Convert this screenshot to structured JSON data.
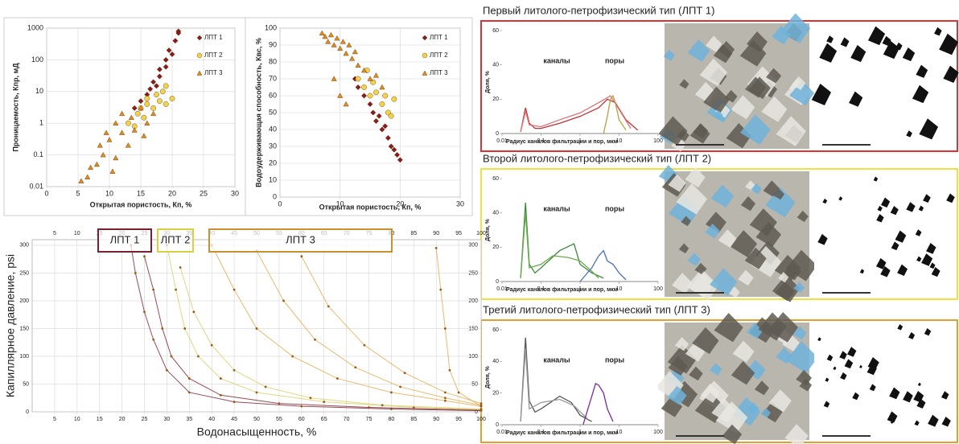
{
  "chart_data": [
    {
      "type": "scatter",
      "x_label": "Открытая пористость, Кп, %",
      "y_label": "Проницаемость, Кпр, мД",
      "xlim": [
        0,
        30
      ],
      "xticks": [
        0,
        5,
        10,
        15,
        20,
        25,
        30
      ],
      "ylim": [
        0.01,
        1000
      ],
      "yticks": [
        0.01,
        0.1,
        1,
        10,
        100,
        1000
      ],
      "log_y": true,
      "grid": true,
      "legend": "right",
      "series": [
        {
          "name": "ЛПТ 1",
          "color": "#8b1a1a",
          "marker": "diamond",
          "x": [
            14,
            15,
            16,
            16.5,
            17,
            17.5,
            18,
            18,
            19,
            19,
            19.5,
            20,
            20.5,
            21,
            21
          ],
          "values": [
            3,
            5,
            8,
            12,
            20,
            15,
            30,
            50,
            60,
            100,
            200,
            150,
            400,
            700,
            800
          ]
        },
        {
          "name": "ЛПТ 2",
          "color": "#f2d24a",
          "marker": "circle",
          "x": [
            13,
            14,
            14.5,
            15,
            15.5,
            16,
            16,
            17,
            17.5,
            18,
            18.5,
            19,
            19,
            20
          ],
          "values": [
            1,
            0.8,
            2,
            3,
            1.5,
            4,
            6,
            3,
            8,
            5,
            10,
            4,
            15,
            6
          ]
        },
        {
          "name": "ЛПТ 3",
          "color": "#e08a1e",
          "marker": "triangle",
          "x": [
            7,
            8,
            8.5,
            9,
            9.5,
            10,
            10.5,
            11,
            11,
            12,
            12,
            13,
            13.5,
            14,
            15,
            15.5,
            16,
            17,
            5.5,
            6.5
          ],
          "values": [
            0.04,
            0.05,
            0.2,
            0.1,
            0.5,
            0.3,
            0.03,
            1,
            0.08,
            0.5,
            2,
            0.2,
            1.5,
            0.6,
            3,
            0.4,
            1,
            2,
            0.015,
            0.02
          ]
        }
      ]
    },
    {
      "type": "scatter",
      "x_label": "Открытая пористость, Кп, %",
      "y_label": "Водоудерживающая способность, Квс, %",
      "xlim": [
        0,
        30
      ],
      "xticks": [
        0,
        10,
        20,
        30
      ],
      "ylim": [
        0,
        100
      ],
      "yticks": [
        0,
        10,
        20,
        30,
        40,
        50,
        60,
        70,
        80,
        90,
        100
      ],
      "grid": true,
      "legend": "right",
      "series": [
        {
          "name": "ЛПТ 1",
          "color": "#8b1a1a",
          "marker": "diamond",
          "x": [
            14,
            15,
            15.5,
            16,
            16.5,
            17,
            17.5,
            18,
            18.5,
            19,
            19.5,
            20,
            13,
            12.5
          ],
          "values": [
            60,
            55,
            50,
            45,
            48,
            40,
            42,
            35,
            30,
            28,
            25,
            22,
            65,
            70
          ]
        },
        {
          "name": "ЛПТ 2",
          "color": "#f2d24a",
          "marker": "circle",
          "x": [
            13,
            14,
            14.5,
            15,
            15.5,
            16,
            17,
            17.5,
            18,
            18.5,
            19
          ],
          "values": [
            70,
            65,
            75,
            60,
            68,
            62,
            55,
            60,
            50,
            48,
            58
          ]
        },
        {
          "name": "ЛПТ 3",
          "color": "#e08a1e",
          "marker": "triangle",
          "x": [
            7,
            7.5,
            8,
            8.5,
            9,
            9.5,
            10,
            10.5,
            11,
            11.5,
            12,
            12.5,
            13,
            14,
            15,
            16,
            17,
            9,
            10,
            11
          ],
          "values": [
            97,
            95,
            92,
            96,
            90,
            94,
            88,
            92,
            85,
            90,
            82,
            86,
            78,
            75,
            70,
            72,
            65,
            70,
            60,
            55
          ]
        }
      ]
    },
    {
      "type": "line",
      "x_label": "Водонасыщенность, %",
      "y_label": "Капиллярное давление, psi",
      "xlim": [
        0,
        100
      ],
      "xticks": [
        5,
        10,
        15,
        20,
        25,
        30,
        35,
        40,
        45,
        50,
        55,
        60,
        65,
        70,
        75,
        80,
        85,
        90,
        95,
        100
      ],
      "ylim": [
        0,
        310
      ],
      "yticks": [
        0,
        50,
        100,
        150,
        200,
        250,
        300
      ],
      "grid": true,
      "annotations": [
        {
          "text": "ЛПТ 1",
          "color": "#7a2030"
        },
        {
          "text": "ЛПТ 2",
          "color": "#d8d040"
        },
        {
          "text": "ЛПТ 3",
          "color": "#c89030"
        }
      ],
      "series": [
        {
          "color": "#7a2030",
          "x": [
            22,
            23,
            25,
            27,
            30,
            35,
            45,
            60,
            80,
            100
          ],
          "values": [
            300,
            250,
            180,
            130,
            75,
            35,
            18,
            10,
            5,
            2
          ]
        },
        {
          "color": "#7a2030",
          "x": [
            25,
            27,
            29,
            31,
            35,
            42,
            55,
            75,
            100
          ],
          "values": [
            280,
            220,
            150,
            100,
            60,
            30,
            15,
            8,
            3
          ]
        },
        {
          "color": "#d6d060",
          "x": [
            30,
            32,
            34,
            37,
            42,
            50,
            65,
            85,
            100
          ],
          "values": [
            300,
            220,
            150,
            100,
            60,
            35,
            18,
            8,
            4
          ]
        },
        {
          "color": "#d6d060",
          "x": [
            33,
            36,
            40,
            45,
            52,
            62,
            78,
            100
          ],
          "values": [
            260,
            180,
            120,
            75,
            45,
            25,
            12,
            5
          ]
        },
        {
          "color": "#e3a94a",
          "x": [
            40,
            45,
            50,
            58,
            68,
            80,
            92,
            100
          ],
          "values": [
            300,
            220,
            150,
            100,
            60,
            35,
            20,
            10
          ]
        },
        {
          "color": "#e3a94a",
          "x": [
            50,
            56,
            63,
            72,
            82,
            92,
            100
          ],
          "values": [
            290,
            200,
            130,
            80,
            45,
            25,
            12
          ]
        },
        {
          "color": "#e3a94a",
          "x": [
            60,
            66,
            74,
            83,
            92,
            100
          ],
          "values": [
            280,
            190,
            120,
            70,
            35,
            15
          ]
        },
        {
          "color": "#e3a94a",
          "x": [
            90,
            91,
            92,
            93,
            95,
            100
          ],
          "values": [
            295,
            220,
            150,
            75,
            35,
            10
          ]
        }
      ]
    },
    {
      "type": "line",
      "title": "Первый литолого-петрофизический тип (ЛПТ 1)",
      "frame_color": "#e03030",
      "x_label": "Радиус каналов фильтрации и пор, мкм",
      "y_label": "Доля, %",
      "xlim": [
        0.01,
        100
      ],
      "xticks": [
        0.01,
        0.1,
        1,
        10,
        100
      ],
      "log_x": true,
      "ylim": [
        0,
        60
      ],
      "yticks": [
        0,
        20,
        40,
        60
      ],
      "annotations": [
        {
          "text": "каналы"
        },
        {
          "text": "поры"
        }
      ],
      "series": [
        {
          "color": "#c0303a",
          "x": [
            0.03,
            0.04,
            0.05,
            0.07,
            0.1,
            0.3,
            1,
            3,
            5,
            8,
            15,
            30
          ],
          "values": [
            1,
            15,
            6,
            3,
            3,
            6,
            10,
            15,
            20,
            18,
            8,
            2
          ]
        },
        {
          "color": "#e07070",
          "x": [
            0.03,
            0.04,
            0.05,
            0.1,
            0.3,
            1,
            3,
            6,
            10,
            20
          ],
          "values": [
            1,
            13,
            5,
            4,
            8,
            12,
            18,
            22,
            14,
            3
          ]
        },
        {
          "color": "#b8a040",
          "x": [
            4,
            5,
            6,
            7,
            8,
            10,
            15
          ],
          "values": [
            0,
            10,
            20,
            22,
            18,
            8,
            2
          ]
        }
      ]
    },
    {
      "type": "line",
      "title": "Второй  литолого-петрофизический тип (ЛПТ 2)",
      "frame_color": "#f0e040",
      "x_label": "Радиус каналов фильтрации и пор, мкм",
      "y_label": "Доля, %",
      "xlim": [
        0.01,
        100
      ],
      "xticks": [
        0.01,
        0.1,
        1,
        10,
        100
      ],
      "log_x": true,
      "ylim": [
        0,
        60
      ],
      "yticks": [
        0,
        20,
        40,
        60
      ],
      "annotations": [
        {
          "text": "каналы"
        },
        {
          "text": "поры"
        }
      ],
      "series": [
        {
          "color": "#3a8a3a",
          "x": [
            0.03,
            0.04,
            0.05,
            0.07,
            0.1,
            0.3,
            0.7,
            1,
            2,
            4
          ],
          "values": [
            2,
            46,
            10,
            5,
            8,
            18,
            22,
            10,
            5,
            2
          ]
        },
        {
          "color": "#6aaa4a",
          "x": [
            0.03,
            0.04,
            0.05,
            0.1,
            0.2,
            0.5,
            1,
            2,
            3
          ],
          "values": [
            2,
            40,
            8,
            10,
            15,
            14,
            12,
            6,
            2
          ]
        },
        {
          "color": "#4a70c0",
          "x": [
            1,
            2,
            3,
            4,
            5,
            7,
            10,
            15
          ],
          "values": [
            0,
            8,
            15,
            18,
            12,
            10,
            5,
            1
          ]
        }
      ]
    },
    {
      "type": "line",
      "title": "Третий литолого-петрофизический тип (ЛПТ 3)",
      "frame_color": "#e0a030",
      "x_label": "Радиус каналов фильтрации и пор, мкм",
      "y_label": "Доля, %",
      "xlim": [
        0.01,
        100
      ],
      "xticks": [
        0.01,
        0.1,
        1,
        10,
        100
      ],
      "log_x": true,
      "ylim": [
        0,
        60
      ],
      "yticks": [
        0,
        20,
        40,
        60
      ],
      "annotations": [
        {
          "text": "каналы"
        },
        {
          "text": "поры"
        }
      ],
      "series": [
        {
          "color": "#555555",
          "x": [
            0.03,
            0.04,
            0.05,
            0.07,
            0.1,
            0.3,
            0.6,
            1,
            2
          ],
          "values": [
            2,
            55,
            15,
            8,
            10,
            18,
            14,
            6,
            2
          ]
        },
        {
          "color": "#999999",
          "x": [
            0.03,
            0.04,
            0.05,
            0.1,
            0.3,
            0.7,
            1.5
          ],
          "values": [
            2,
            48,
            10,
            14,
            16,
            12,
            4
          ]
        },
        {
          "color": "#7a2aa0",
          "x": [
            1.2,
            1.5,
            2,
            2.5,
            3,
            4,
            5,
            7
          ],
          "values": [
            0,
            8,
            18,
            26,
            25,
            20,
            10,
            2
          ]
        }
      ]
    }
  ]
}
